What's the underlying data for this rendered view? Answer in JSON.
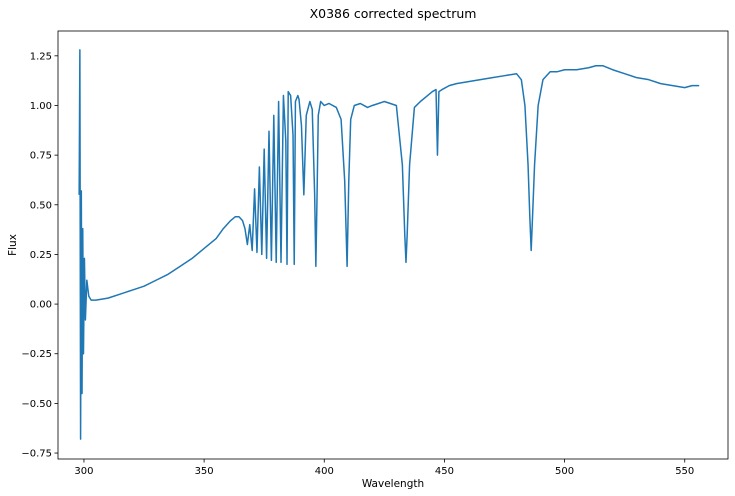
{
  "chart_data": {
    "type": "line",
    "title": "X0386 corrected spectrum",
    "xlabel": "Wavelength",
    "ylabel": "Flux",
    "xlim": [
      289.2,
      568.0
    ],
    "ylim": [
      -0.78,
      1.375
    ],
    "xticks": [
      300,
      350,
      400,
      450,
      500,
      550
    ],
    "yticks": [
      -0.75,
      -0.5,
      -0.25,
      0.0,
      0.25,
      0.5,
      0.75,
      1.0,
      1.25
    ],
    "yticklabels": [
      "−0.75",
      "−0.50",
      "−0.25",
      "0.00",
      "0.25",
      "0.50",
      "0.75",
      "1.00",
      "1.25"
    ],
    "grid": false,
    "line_color": "#1f77b4",
    "series": [
      {
        "x": [
          298.0,
          298.3,
          298.6,
          298.9,
          299.2,
          299.5,
          299.8,
          300.2,
          300.6,
          301.2,
          302.0,
          303.0,
          305.0,
          310.0,
          315.0,
          320.0,
          325.0,
          330.0,
          335.0,
          340.0,
          345.0,
          350.0,
          355.0,
          358.0,
          361.0,
          363.0,
          364.5,
          366.0,
          367.0,
          368.0,
          369.0,
          370.0,
          371.0,
          372.0,
          373.0,
          374.0,
          375.0,
          376.0,
          377.0,
          378.0,
          379.0,
          380.0,
          381.0,
          382.0,
          383.0,
          384.0,
          384.5,
          385.0,
          386.0,
          387.0,
          387.5,
          388.0,
          389.0,
          389.5,
          390.5,
          391.5,
          392.5,
          394.0,
          395.0,
          396.0,
          396.5,
          397.0,
          397.5,
          398.5,
          400.0,
          402.0,
          405.0,
          407.0,
          408.5,
          409.5,
          410.2,
          411.0,
          412.5,
          415.0,
          418.0,
          420.0,
          425.0,
          430.0,
          432.5,
          433.5,
          434.0,
          434.5,
          435.5,
          437.5,
          440.0,
          443.0,
          445.0,
          446.5,
          447.1,
          447.7,
          449.0,
          452.0,
          455.0,
          460.0,
          465.0,
          470.0,
          475.0,
          480.0,
          482.0,
          483.5,
          484.8,
          485.5,
          486.1,
          486.7,
          487.5,
          489.0,
          491.0,
          494.0,
          497.0,
          500.0,
          505.0,
          510.0,
          513.0,
          516.0,
          520.0,
          525.0,
          530.0,
          535.0,
          540.0,
          545.0,
          550.0,
          553.0,
          556.0
        ],
        "y": [
          0.55,
          1.28,
          -0.68,
          0.57,
          -0.45,
          0.38,
          -0.25,
          0.23,
          -0.08,
          0.12,
          0.04,
          0.02,
          0.02,
          0.03,
          0.05,
          0.07,
          0.09,
          0.12,
          0.15,
          0.19,
          0.23,
          0.28,
          0.33,
          0.38,
          0.42,
          0.44,
          0.44,
          0.42,
          0.38,
          0.3,
          0.4,
          0.27,
          0.58,
          0.26,
          0.69,
          0.25,
          0.78,
          0.23,
          0.87,
          0.22,
          0.95,
          0.21,
          1.02,
          0.21,
          1.05,
          0.82,
          0.2,
          1.07,
          1.05,
          0.85,
          0.2,
          1.02,
          1.05,
          1.03,
          0.9,
          0.55,
          0.95,
          1.02,
          0.98,
          0.55,
          0.19,
          0.55,
          0.95,
          1.02,
          1.0,
          1.01,
          0.99,
          0.93,
          0.62,
          0.19,
          0.62,
          0.93,
          1.0,
          1.01,
          0.99,
          1.0,
          1.02,
          1.0,
          0.7,
          0.35,
          0.21,
          0.35,
          0.7,
          0.99,
          1.02,
          1.05,
          1.07,
          1.08,
          0.75,
          1.07,
          1.08,
          1.1,
          1.11,
          1.12,
          1.13,
          1.14,
          1.15,
          1.16,
          1.13,
          1.0,
          0.7,
          0.45,
          0.27,
          0.45,
          0.7,
          1.0,
          1.13,
          1.17,
          1.17,
          1.18,
          1.18,
          1.19,
          1.2,
          1.2,
          1.18,
          1.16,
          1.14,
          1.13,
          1.11,
          1.1,
          1.09,
          1.1,
          1.1
        ]
      }
    ]
  }
}
